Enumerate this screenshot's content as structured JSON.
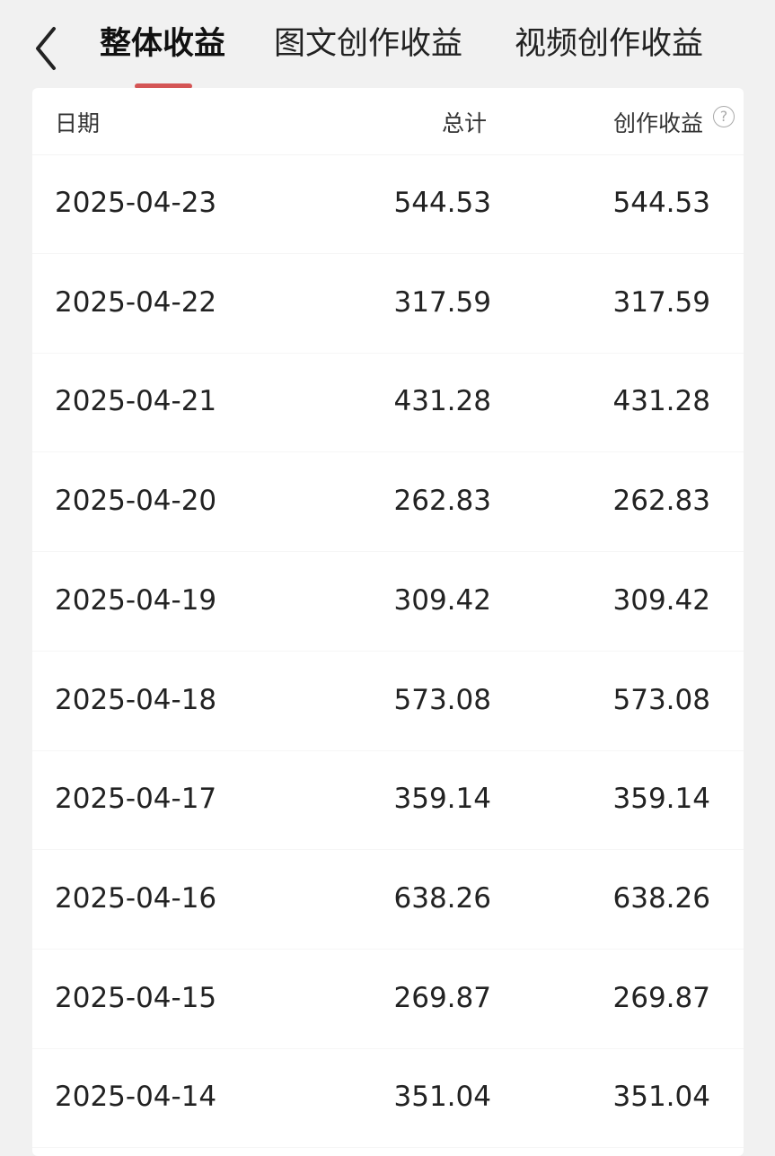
{
  "tabs": [
    {
      "label": "整体收益",
      "active": true
    },
    {
      "label": "图文创作收益",
      "active": false
    },
    {
      "label": "视频创作收益",
      "active": false
    }
  ],
  "accent_color": "#d45555",
  "table": {
    "headers": {
      "date": "日期",
      "total": "总计",
      "creation": "创作收益",
      "help_icon": "?"
    },
    "rows": [
      {
        "date": "2025-04-23",
        "total": "544.53",
        "creation": "544.53"
      },
      {
        "date": "2025-04-22",
        "total": "317.59",
        "creation": "317.59"
      },
      {
        "date": "2025-04-21",
        "total": "431.28",
        "creation": "431.28"
      },
      {
        "date": "2025-04-20",
        "total": "262.83",
        "creation": "262.83"
      },
      {
        "date": "2025-04-19",
        "total": "309.42",
        "creation": "309.42"
      },
      {
        "date": "2025-04-18",
        "total": "573.08",
        "creation": "573.08"
      },
      {
        "date": "2025-04-17",
        "total": "359.14",
        "creation": "359.14"
      },
      {
        "date": "2025-04-16",
        "total": "638.26",
        "creation": "638.26"
      },
      {
        "date": "2025-04-15",
        "total": "269.87",
        "creation": "269.87"
      },
      {
        "date": "2025-04-14",
        "total": "351.04",
        "creation": "351.04"
      }
    ]
  }
}
